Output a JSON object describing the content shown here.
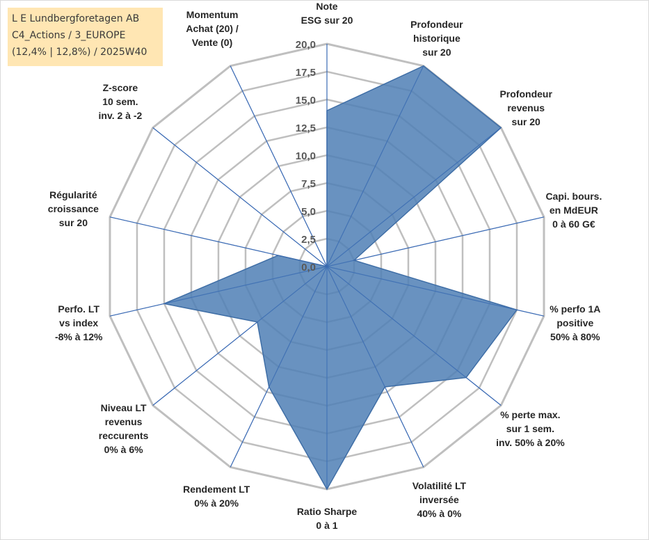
{
  "title_box": {
    "line1": "L E Lundbergforetagen AB",
    "line2": "C4_Actions / 3_EUROPE",
    "line3": "(12,4% | 12,8%) / 2025W40"
  },
  "colors": {
    "fill": "#4f7fb5",
    "spoke": "#3a6ab4",
    "grid": "#bfbfbf",
    "title_bg": "#ffe6b3"
  },
  "chart_data": {
    "type": "radar",
    "rmax": 20,
    "tick_values": [
      0,
      2.5,
      5,
      7.5,
      10,
      12.5,
      15,
      17.5,
      20
    ],
    "tick_labels": [
      "0,0",
      "2,5",
      "5,0",
      "7,5",
      "10,0",
      "12,5",
      "15,0",
      "17,5",
      "20,0"
    ],
    "axes": [
      {
        "lines": [
          "Note",
          "ESG sur 20"
        ],
        "value": 14
      },
      {
        "lines": [
          "Profondeur",
          "historique",
          "sur 20"
        ],
        "value": 20
      },
      {
        "lines": [
          "Profondeur",
          "revenus",
          "sur 20"
        ],
        "value": 20
      },
      {
        "lines": [
          "Capi. bours.",
          "en MdEUR",
          "0 à 60 G€"
        ],
        "value": 2.5
      },
      {
        "lines": [
          "% perfo 1A",
          "positive",
          "50% à 80%"
        ],
        "value": 17.5
      },
      {
        "lines": [
          "% perte max.",
          "sur 1 sem.",
          "inv. 50% à 20%"
        ],
        "value": 16
      },
      {
        "lines": [
          "Volatilité LT",
          "inversée",
          "40% à 0%"
        ],
        "value": 12
      },
      {
        "lines": [
          "Ratio Sharpe",
          "0 à 1"
        ],
        "value": 20
      },
      {
        "lines": [
          "Rendement LT",
          "0% à 20%"
        ],
        "value": 12
      },
      {
        "lines": [
          "Niveau LT",
          "revenus",
          "reccurents",
          "0% à 6%"
        ],
        "value": 8
      },
      {
        "lines": [
          "Perfo. LT",
          "vs index",
          "-8% à 12%"
        ],
        "value": 15
      },
      {
        "lines": [
          "Régularité",
          "croissance",
          "sur 20"
        ],
        "value": 4.5
      },
      {
        "lines": [
          "Z-score",
          "10 sem.",
          "inv. 2 à -2"
        ],
        "value": 0
      },
      {
        "lines": [
          "Momentum",
          "Achat (20) /",
          "Vente (0)"
        ],
        "value": 0
      }
    ]
  }
}
